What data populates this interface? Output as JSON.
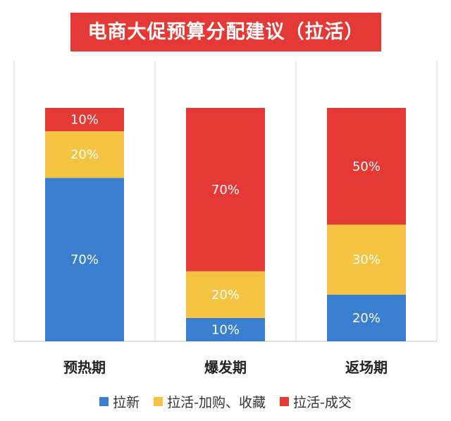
{
  "chart_data": {
    "type": "bar",
    "stacked": true,
    "title": "电商大促预算分配建议（拉活）",
    "categories": [
      "预热期",
      "爆发期",
      "返场期"
    ],
    "series": [
      {
        "name": "拉新",
        "color": "#3a7fcf",
        "values": [
          70,
          10,
          20
        ],
        "labels": [
          "70%",
          "10%",
          "20%"
        ]
      },
      {
        "name": "拉活-加购、收藏",
        "color": "#f5c342",
        "values": [
          20,
          20,
          30
        ],
        "labels": [
          "20%",
          "20%",
          "30%"
        ]
      },
      {
        "name": "拉活-成交",
        "color": "#e53935",
        "values": [
          10,
          70,
          50
        ],
        "labels": [
          "10%",
          "70%",
          "50%"
        ]
      }
    ],
    "ylim": [
      0,
      100
    ],
    "grid": "vertical-separators",
    "legend_position": "bottom"
  }
}
